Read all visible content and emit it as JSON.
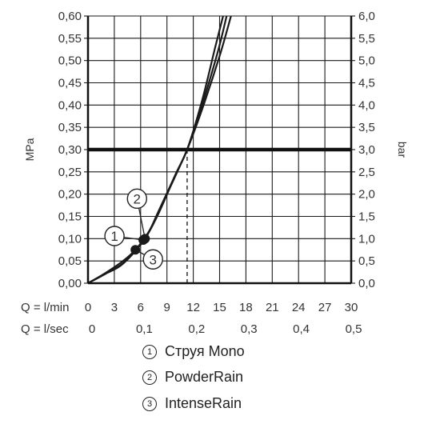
{
  "chart_data": {
    "type": "line",
    "ylabel_left": "MPa",
    "ylabel_right": "bar",
    "x_row1_label": "Q = l/min",
    "x_row2_label": "Q = l/sec",
    "x_ticks_lmin": [
      "0",
      "3",
      "6",
      "9",
      "12",
      "15",
      "18",
      "21",
      "24",
      "27",
      "30"
    ],
    "x_ticks_lsec": [
      "0",
      "0,1",
      "0,2",
      "0,3",
      "0,4",
      "0,5"
    ],
    "y_ticks_mpa": [
      "0,00",
      "0,05",
      "0,10",
      "0,15",
      "0,20",
      "0,25",
      "0,30",
      "0,35",
      "0,40",
      "0,45",
      "0,50",
      "0,55",
      "0,60"
    ],
    "y_ticks_bar": [
      "0,0",
      "0,5",
      "1,0",
      "1,5",
      "2,0",
      "2,5",
      "3,0",
      "3,5",
      "4,0",
      "4,5",
      "5,0",
      "5,5",
      "6,0"
    ],
    "xlim": [
      0,
      30
    ],
    "ylim": [
      0,
      0.6
    ],
    "grid": true,
    "reference_line": {
      "pressure_mpa": 0.3,
      "flow_lmin": 11.3
    },
    "series": [
      {
        "name": "Струя Mono",
        "marker": "1",
        "x": [
          0,
          2,
          4,
          6.3,
          8,
          10,
          11.3,
          13,
          14.5,
          15.4
        ],
        "y": [
          0,
          0.022,
          0.045,
          0.095,
          0.155,
          0.245,
          0.3,
          0.41,
          0.53,
          0.6
        ],
        "points": [
          {
            "x": 6.3,
            "y": 0.097
          }
        ]
      },
      {
        "name": "PowderRain",
        "marker": "2",
        "x": [
          0,
          2,
          4,
          6.5,
          8,
          10,
          11.3,
          13,
          14.8,
          15.8
        ],
        "y": [
          0,
          0.021,
          0.044,
          0.1,
          0.16,
          0.245,
          0.3,
          0.4,
          0.52,
          0.6
        ],
        "points": [
          {
            "x": 6.5,
            "y": 0.1
          }
        ]
      },
      {
        "name": "IntenseRain",
        "marker": "3",
        "x": [
          0,
          2,
          4,
          5.4,
          7,
          9,
          11.3,
          13,
          15,
          16.3
        ],
        "y": [
          0,
          0.023,
          0.05,
          0.075,
          0.118,
          0.2,
          0.3,
          0.39,
          0.51,
          0.6
        ],
        "points": [
          {
            "x": 5.4,
            "y": 0.075
          }
        ]
      }
    ]
  }
}
